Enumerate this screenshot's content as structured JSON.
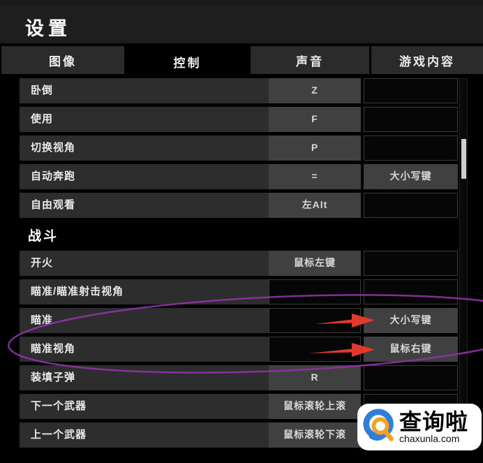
{
  "window": {
    "title": "设置"
  },
  "tabs": [
    {
      "name": "tab-graphics",
      "label": "图像",
      "active": false
    },
    {
      "name": "tab-controls",
      "label": "控制",
      "active": true
    },
    {
      "name": "tab-sound",
      "label": "声音",
      "active": false
    },
    {
      "name": "tab-gameplay",
      "label": "游戏内容",
      "active": false
    }
  ],
  "sections": [
    {
      "header": "",
      "rows": [
        {
          "label": "卧倒",
          "key1": "Z",
          "key2": ""
        },
        {
          "label": "使用",
          "key1": "F",
          "key2": ""
        },
        {
          "label": "切换视角",
          "key1": "P",
          "key2": ""
        },
        {
          "label": "自动奔跑",
          "key1": "=",
          "key2": "大小写键"
        },
        {
          "label": "自由观看",
          "key1": "左Alt",
          "key2": ""
        }
      ]
    },
    {
      "header": "战斗",
      "rows": [
        {
          "label": "开火",
          "key1": "鼠标左键",
          "key2": ""
        },
        {
          "label": "瞄准/瞄准射击视角",
          "key1": "",
          "key2": ""
        },
        {
          "label": "瞄准",
          "key1": "",
          "key2": "大小写键"
        },
        {
          "label": "瞄准视角",
          "key1": "",
          "key2": "鼠标右键"
        },
        {
          "label": "装填子弹",
          "key1": "R",
          "key2": ""
        },
        {
          "label": "下一个武器",
          "key1": "鼠标滚轮上滚",
          "key2": ""
        },
        {
          "label": "上一个武器",
          "key1": "鼠标滚轮下滚",
          "key2": ""
        }
      ]
    }
  ],
  "annotations": {
    "highlight_color": "#9232a8",
    "arrow_color": "#e23a2a",
    "highlighted_rows": [
      "瞄准",
      "瞄准视角"
    ]
  },
  "watermark": {
    "name": "查询啦",
    "domain": "chaxunla.com",
    "logo_blue": "#2e7ee0",
    "logo_orange": "#f5a31f"
  }
}
